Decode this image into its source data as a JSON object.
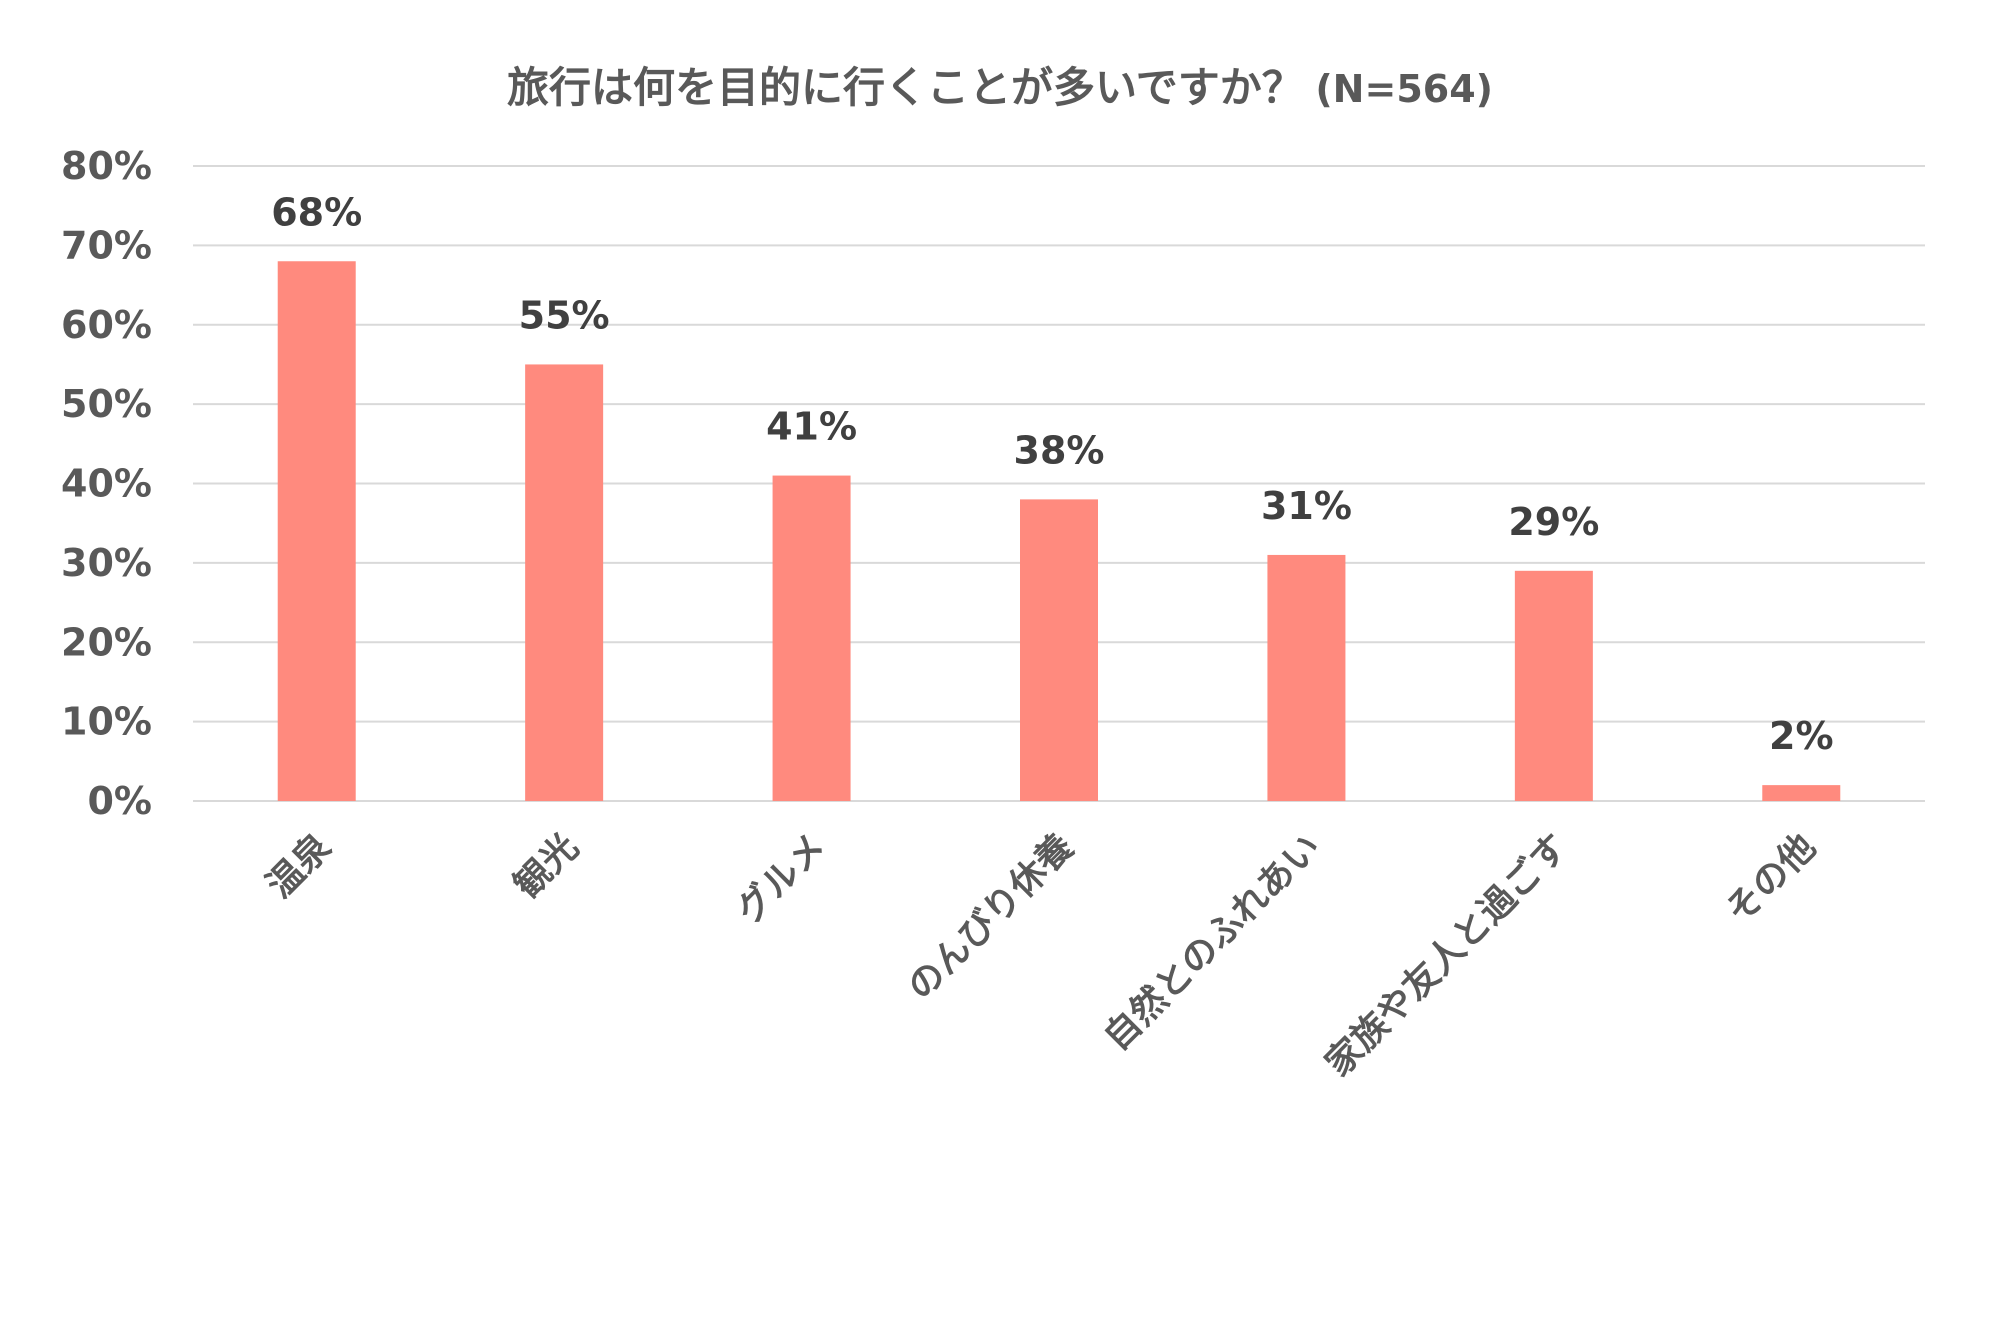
{
  "chart_data": {
    "type": "bar",
    "title": "旅行は何を目的に行くことが多いですか？",
    "subtitle": "(N=564)",
    "categories": [
      "温泉",
      "観光",
      "グルメ",
      "のんびり休養",
      "自然とのふれあい",
      "家族や友人と過ごす",
      "その他"
    ],
    "values": [
      68,
      55,
      41,
      38,
      31,
      29,
      2
    ],
    "data_labels": [
      "68%",
      "55%",
      "41%",
      "38%",
      "31%",
      "29%",
      "2%"
    ],
    "ylim": [
      0,
      80
    ],
    "yticks": [
      0,
      10,
      20,
      30,
      40,
      50,
      60,
      70,
      80
    ],
    "ytick_labels": [
      "0%",
      "10%",
      "20%",
      "30%",
      "40%",
      "50%",
      "60%",
      "70%",
      "80%"
    ],
    "grid": true,
    "legend": "none",
    "bar_color": "#FF8A7E",
    "grid_color": "#D9D9D9"
  }
}
